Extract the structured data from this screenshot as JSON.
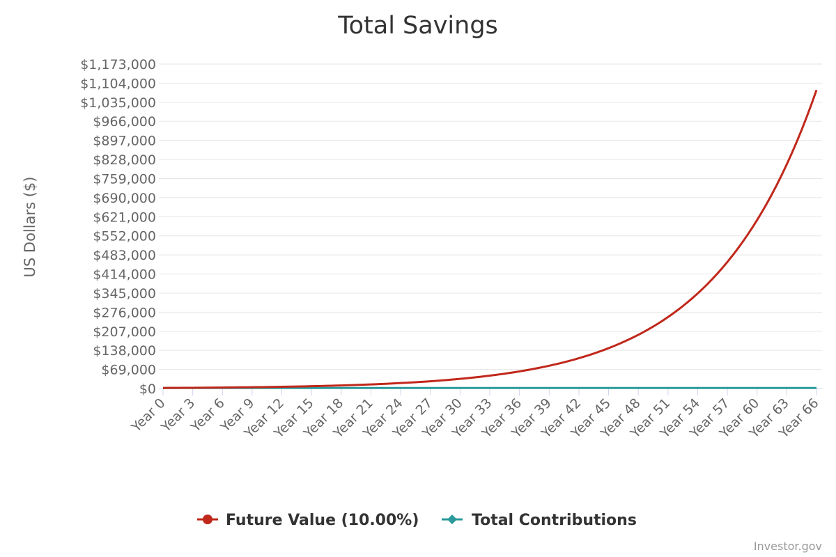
{
  "chart_data": {
    "type": "line",
    "title": "Total Savings",
    "ylabel": "US Dollars ($)",
    "xlabel": "",
    "ylim": [
      0,
      1173000
    ],
    "yticks": [
      0,
      69000,
      138000,
      207000,
      276000,
      345000,
      414000,
      483000,
      552000,
      621000,
      690000,
      759000,
      828000,
      897000,
      966000,
      1035000,
      1104000,
      1173000
    ],
    "ytick_labels": [
      "$0",
      "$69,000",
      "$138,000",
      "$207,000",
      "$276,000",
      "$345,000",
      "$414,000",
      "$483,000",
      "$552,000",
      "$621,000",
      "$690,000",
      "$759,000",
      "$828,000",
      "$897,000",
      "$966,000",
      "$1,035,000",
      "$1,104,000",
      "$1,173,000"
    ],
    "x_years": [
      0,
      66
    ],
    "xtick_labels": [
      "Year 0",
      "Year 3",
      "Year 6",
      "Year 9",
      "Year 12",
      "Year 15",
      "Year 18",
      "Year 21",
      "Year 24",
      "Year 27",
      "Year 30",
      "Year 33",
      "Year 36",
      "Year 39",
      "Year 42",
      "Year 45",
      "Year 48",
      "Year 51",
      "Year 54",
      "Year 57",
      "Year 60",
      "Year 63",
      "Year 66"
    ],
    "grid": true,
    "legend_position": "bottom-center",
    "series": [
      {
        "name": "Future Value (10.00%)",
        "color": "#c0281b",
        "marker": "circle",
        "initial": 2000,
        "rate": 0.1,
        "years": 66,
        "sample_values": {
          "0": 2000,
          "30": 34900,
          "45": 145700,
          "60": 608900,
          "66": 1078700
        }
      },
      {
        "name": "Total Contributions",
        "color": "#2a9a9a",
        "marker": "diamond",
        "values_constant": 2000
      }
    ],
    "credit": "Investor.gov"
  },
  "colors": {
    "grid": "#e6e6e6",
    "axis": "#ccd6eb",
    "future_value": "#c0281b",
    "contributions": "#2a9a9a"
  }
}
